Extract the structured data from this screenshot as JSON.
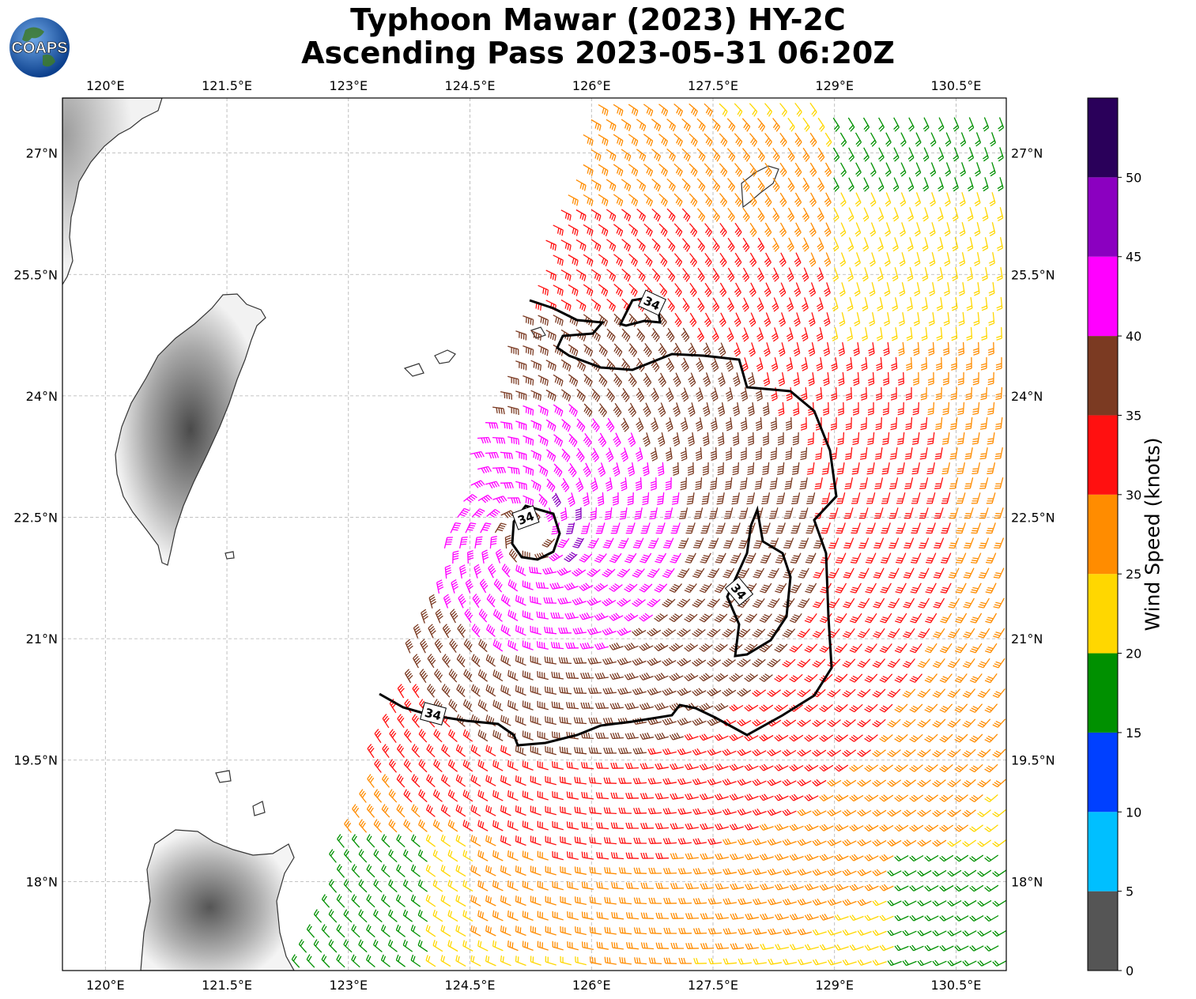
{
  "title": {
    "line1": "Typhoon Mawar (2023) HY-2C",
    "line2": "Ascending Pass 2023-05-31 06:20Z"
  },
  "logo": {
    "text": "COAPS",
    "icon": "globe-icon"
  },
  "map": {
    "lon_ticks": [
      "120°E",
      "121.5°E",
      "123°E",
      "124.5°E",
      "126°E",
      "127.5°E",
      "129°E",
      "130.5°E"
    ],
    "lat_ticks": [
      "27°N",
      "25.5°N",
      "24°N",
      "22.5°N",
      "21°N",
      "19.5°N",
      "18°N"
    ],
    "lon_range": [
      119.47,
      131.12
    ],
    "lat_range": [
      16.9,
      27.68
    ],
    "contour_label": "34",
    "typhoon_center": {
      "lon": 125.2,
      "lat": 22.3
    },
    "gridlines": true
  },
  "colorbar": {
    "label": "Wind Speed (knots)",
    "ticks": [
      "0",
      "5",
      "10",
      "15",
      "20",
      "25",
      "30",
      "35",
      "40",
      "45",
      "50"
    ],
    "bins": [
      {
        "range": [
          0,
          5
        ],
        "color": "#555555"
      },
      {
        "range": [
          5,
          10
        ],
        "color": "#00bfff"
      },
      {
        "range": [
          10,
          15
        ],
        "color": "#0040ff"
      },
      {
        "range": [
          15,
          20
        ],
        "color": "#009000"
      },
      {
        "range": [
          20,
          25
        ],
        "color": "#ffd700"
      },
      {
        "range": [
          25,
          30
        ],
        "color": "#ff8c00"
      },
      {
        "range": [
          30,
          35
        ],
        "color": "#ff1010"
      },
      {
        "range": [
          35,
          40
        ],
        "color": "#7b3a22"
      },
      {
        "range": [
          40,
          45
        ],
        "color": "#ff00ff"
      },
      {
        "range": [
          45,
          50
        ],
        "color": "#8b00c0"
      },
      {
        "range": [
          50,
          55
        ],
        "color": "#2a005a"
      }
    ]
  }
}
